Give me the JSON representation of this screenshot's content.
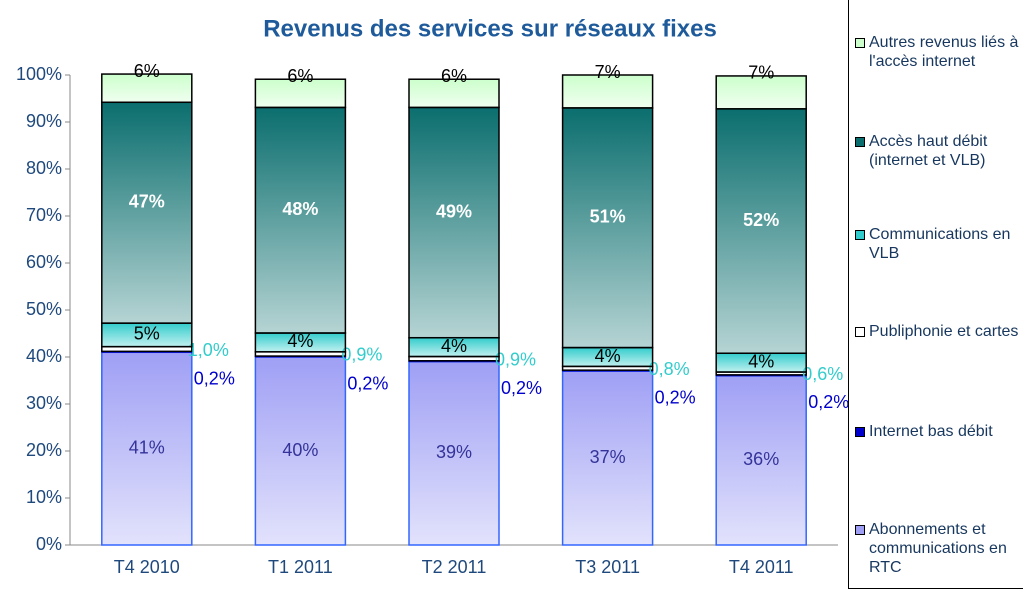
{
  "chart_data": {
    "type": "stacked_bar",
    "title": "Revenus des services sur réseaux fixes",
    "categories": [
      "T4 2010",
      "T1 2011",
      "T2 2011",
      "T3 2011",
      "T4 2011"
    ],
    "series": [
      {
        "name": "Abonnements et communications en RTC",
        "color": "#9f9ff5",
        "values": [
          41,
          40,
          39,
          37,
          36
        ],
        "value_labels": [
          "41%",
          "40%",
          "39%",
          "37%",
          "36%"
        ]
      },
      {
        "name": "Internet bas débit",
        "color": "#0000cc",
        "values": [
          0.2,
          0.2,
          0.2,
          0.2,
          0.2
        ],
        "value_labels": [
          "0,2%",
          "0,2%",
          "0,2%",
          "0,2%",
          "0,2%"
        ]
      },
      {
        "name": "Publiphonie et cartes",
        "color": "#ffffff",
        "values": [
          1.0,
          0.9,
          0.9,
          0.8,
          0.6
        ],
        "value_labels": [
          "1,0%",
          "0,9%",
          "0,9%",
          "0,8%",
          "0,6%"
        ]
      },
      {
        "name": "Communications en VLB",
        "color": "#33cccc",
        "values": [
          5,
          4,
          4,
          4,
          4
        ],
        "value_labels": [
          "5%",
          "4%",
          "4%",
          "4%",
          "4%"
        ]
      },
      {
        "name": "Accès haut débit (internet et VLB)",
        "color": "#0b6e6e",
        "values": [
          47,
          48,
          49,
          51,
          52
        ],
        "value_labels": [
          "47%",
          "48%",
          "49%",
          "51%",
          "52%"
        ]
      },
      {
        "name": "Autres revenus liés à l'accès internet",
        "color": "#ccffcc",
        "values": [
          6,
          6,
          6,
          7,
          7
        ],
        "value_labels": [
          "6%",
          "6%",
          "6%",
          "7%",
          "7%"
        ]
      }
    ],
    "ylim": [
      0,
      100
    ],
    "yticks": [
      {
        "value": 0,
        "label": "0%"
      },
      {
        "value": 10,
        "label": "10%"
      },
      {
        "value": 20,
        "label": "20%"
      },
      {
        "value": 30,
        "label": "30%"
      },
      {
        "value": 40,
        "label": "40%"
      },
      {
        "value": 50,
        "label": "50%"
      },
      {
        "value": 60,
        "label": "60%"
      },
      {
        "value": 70,
        "label": "70%"
      },
      {
        "value": 80,
        "label": "80%"
      },
      {
        "value": 90,
        "label": "90%"
      },
      {
        "value": 100,
        "label": "100%"
      }
    ],
    "grid": false,
    "legend": "right"
  }
}
